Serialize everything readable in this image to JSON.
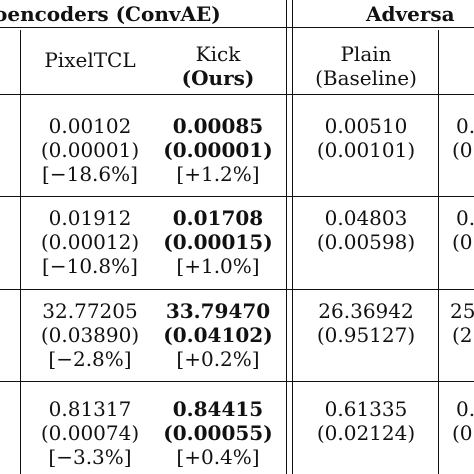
{
  "header": {
    "group1_title": "oencoders (ConvAE)",
    "group2_title": "Adversa",
    "columns": [
      {
        "line1": "PixelTCL",
        "line2": ""
      },
      {
        "line1": "Kick",
        "line2": "(Ours)"
      },
      {
        "line1": "Plain",
        "line2": "(Baseline)"
      }
    ]
  },
  "rows": [
    {
      "pixeltcl": [
        "0.00102",
        "(0.00001)",
        "[−18.6%]"
      ],
      "kick": [
        "0.00085",
        "(0.00001)",
        "[+1.2%]"
      ],
      "plain": [
        "0.00510",
        "(0.00101)",
        ""
      ],
      "partial": [
        "0.",
        "(0."
      ]
    },
    {
      "pixeltcl": [
        "0.01912",
        "(0.00012)",
        "[−10.8%]"
      ],
      "kick": [
        "0.01708",
        "(0.00015)",
        "[+1.0%]"
      ],
      "plain": [
        "0.04803",
        "(0.00598)",
        ""
      ],
      "partial": [
        "0.",
        "(0."
      ]
    },
    {
      "pixeltcl": [
        "32.77205",
        "(0.03890)",
        "[−2.8%]"
      ],
      "kick": [
        "33.79470",
        "(0.04102)",
        "[+0.2%]"
      ],
      "plain": [
        "26.36942",
        "(0.95127)",
        ""
      ],
      "partial": [
        "25",
        "(2."
      ]
    },
    {
      "pixeltcl": [
        "0.81317",
        "(0.00074)",
        "[−3.3%]"
      ],
      "kick": [
        "0.84415",
        "(0.00055)",
        "[+0.4%]"
      ],
      "plain": [
        "0.61335",
        "(0.02124)",
        ""
      ],
      "partial": [
        "0.",
        "(0."
      ]
    }
  ]
}
